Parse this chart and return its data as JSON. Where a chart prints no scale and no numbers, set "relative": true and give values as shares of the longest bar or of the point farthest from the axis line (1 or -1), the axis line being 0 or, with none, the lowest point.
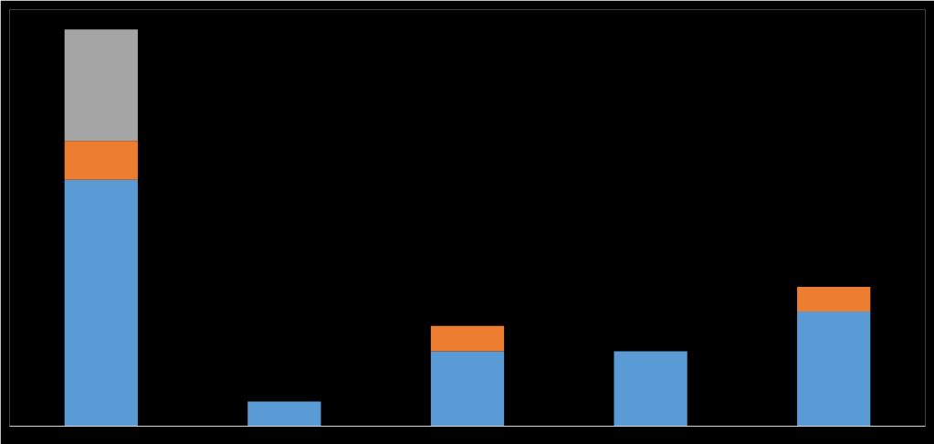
{
  "chart_data": {
    "type": "bar",
    "stacked": true,
    "relative": true,
    "categories": [
      null,
      null,
      null,
      null,
      null
    ],
    "series": [
      {
        "color": "#5b9bd5",
        "values": [
          0.621,
          0.062,
          0.189,
          0.189,
          0.289
        ]
      },
      {
        "color": "#ed7d31",
        "values": [
          0.098,
          0,
          0.064,
          0,
          0.062
        ]
      },
      {
        "color": "#a5a5a5",
        "values": [
          0.281,
          0,
          0,
          0,
          0
        ]
      }
    ]
  }
}
